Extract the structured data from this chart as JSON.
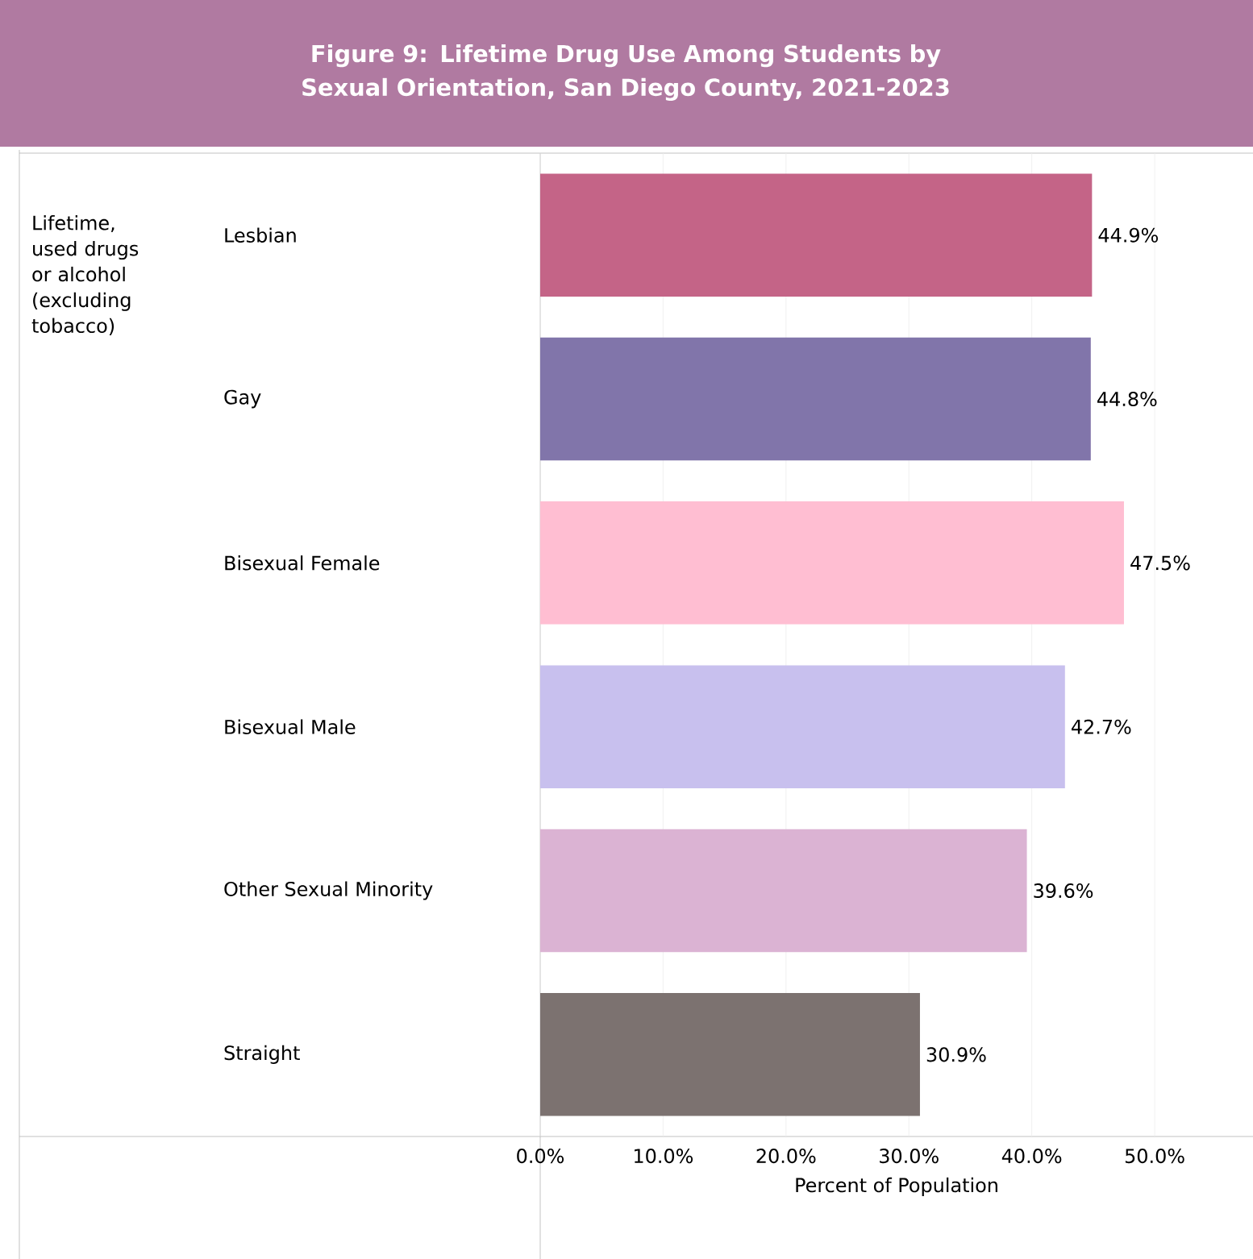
{
  "chart_data": {
    "type": "bar",
    "orientation": "horizontal",
    "title": "Figure 9: Lifetime Drug Use Among Students by Sexual Orientation, San Diego County, 2021-2023",
    "ylabel": "Lifetime, used drugs or alcohol (excluding tobacco)",
    "xlabel": "Percent of Population",
    "categories": [
      "Lesbian",
      "Gay",
      "Bisexual Female",
      "Bisexual Male",
      "Other Sexual Minority",
      "Straight"
    ],
    "values": [
      44.9,
      44.8,
      47.5,
      42.7,
      39.6,
      30.9
    ],
    "value_labels": [
      "44.9%",
      "44.8%",
      "47.5%",
      "42.7%",
      "39.6%",
      "30.9%"
    ],
    "colors": [
      "#c46487",
      "#8175aa",
      "#ffbed2",
      "#c8c0ee",
      "#dbb3d3",
      "#7c7270"
    ],
    "xlim": [
      0,
      58
    ],
    "xticks": [
      {
        "value": 0,
        "label": "0.0%"
      },
      {
        "value": 10,
        "label": "10.0%"
      },
      {
        "value": 20,
        "label": "20.0%"
      },
      {
        "value": 30,
        "label": "30.0%"
      },
      {
        "value": 40,
        "label": "40.0%"
      },
      {
        "value": 50,
        "label": "50.0%"
      }
    ],
    "grid": "x"
  }
}
